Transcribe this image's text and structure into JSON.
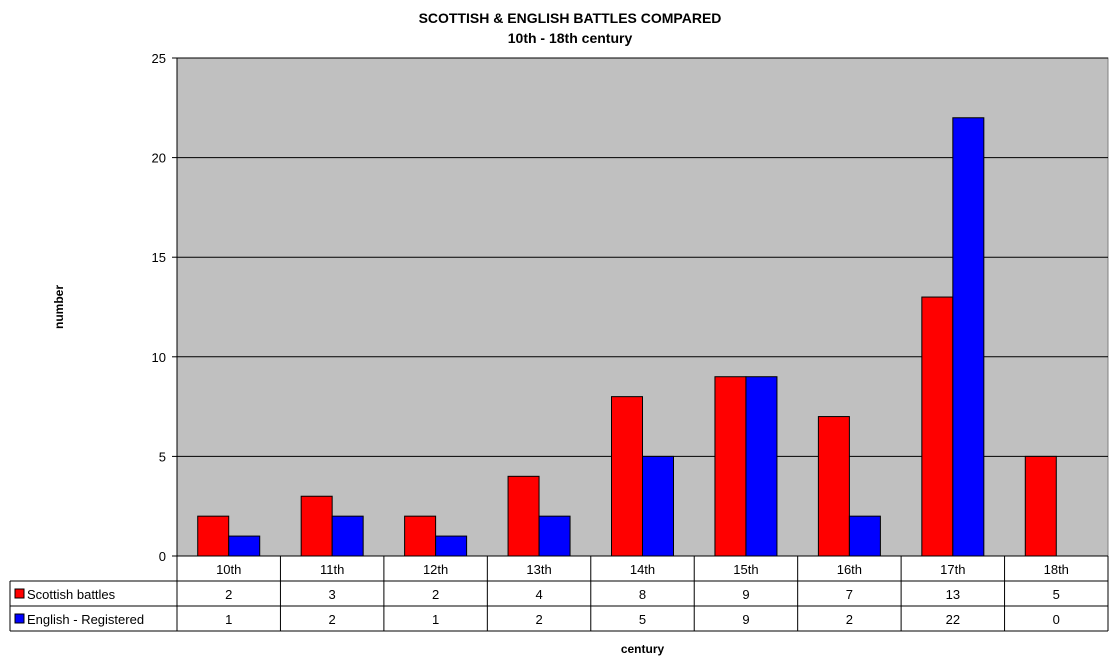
{
  "chart_data": {
    "type": "bar",
    "title": "SCOTTISH & ENGLISH BATTLES COMPARED",
    "subtitle": "10th - 18th century",
    "xlabel": "century",
    "ylabel": "number",
    "ylim": [
      0,
      25
    ],
    "yticks": [
      0,
      5,
      10,
      15,
      20,
      25
    ],
    "categories": [
      "10th",
      "11th",
      "12th",
      "13th",
      "14th",
      "15th",
      "16th",
      "17th",
      "18th"
    ],
    "series": [
      {
        "name": "Scottish battles",
        "values": [
          2,
          3,
          2,
          4,
          8,
          9,
          7,
          13,
          5
        ]
      },
      {
        "name": "English - Registered",
        "values": [
          1,
          2,
          1,
          2,
          5,
          9,
          2,
          22,
          0
        ]
      }
    ],
    "grid": true,
    "legend": "data-table"
  },
  "colors": {
    "plot_background": "#c0c0c0",
    "series": [
      "#ff0000",
      "#0000ff"
    ]
  }
}
